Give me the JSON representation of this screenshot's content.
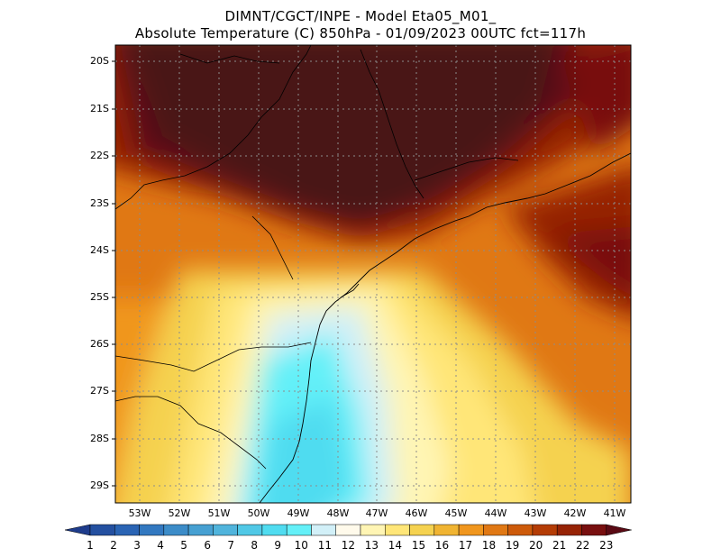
{
  "title": {
    "line1": "DIMNT/CGCT/INPE -  Model Eta05_M01_",
    "line2": "Absolute Temperature (C) 850hPa -  01/09/2023 00UTC fct=117h"
  },
  "map": {
    "lat_labels": [
      "20S",
      "21S",
      "22S",
      "23S",
      "24S",
      "25S",
      "26S",
      "27S",
      "28S",
      "29S"
    ],
    "lon_labels": [
      "53W",
      "52W",
      "51W",
      "50W",
      "49W",
      "48W",
      "47W",
      "46W",
      "45W",
      "44W",
      "43W",
      "42W",
      "41W"
    ]
  },
  "colorbar": {
    "labels": [
      "1",
      "2",
      "3",
      "4",
      "5",
      "6",
      "7",
      "8",
      "9",
      "10",
      "11",
      "12",
      "13",
      "14",
      "15",
      "16",
      "17",
      "18",
      "19",
      "20",
      "21",
      "22",
      "23"
    ],
    "colors": [
      "#1e3c8c",
      "#2450a0",
      "#2a64b4",
      "#3278c0",
      "#3c8cc8",
      "#46a0d2",
      "#50b4dc",
      "#50c8e6",
      "#50dcf0",
      "#64f0f8",
      "#d2f0f8",
      "#fffaeb",
      "#fff5b4",
      "#ffe678",
      "#f5d250",
      "#f0b432",
      "#f0961e",
      "#e07814",
      "#cd5a0a",
      "#b43c05",
      "#962305",
      "#780f0f",
      "#5a0a14"
    ]
  }
}
